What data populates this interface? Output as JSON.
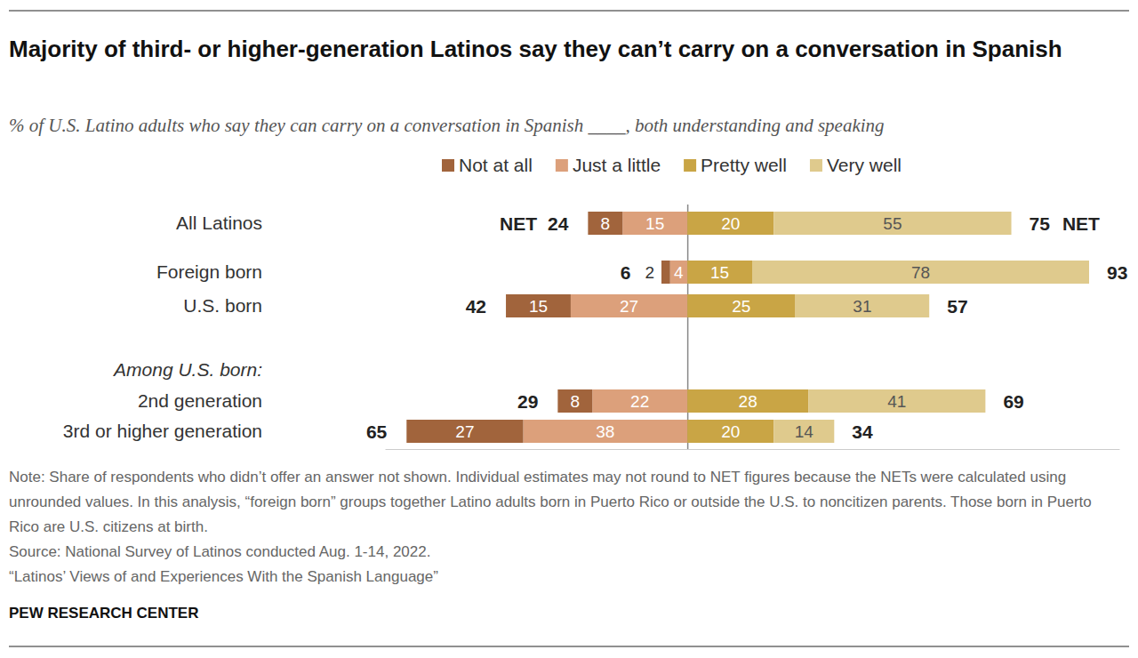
{
  "chart_data": {
    "type": "bar",
    "orientation": "horizontal",
    "stacked": true,
    "data_labels": true,
    "tick_labels": "y",
    "grid": true,
    "legend": "top",
    "title": "Majority of third- or higher-generation Latinos say they can’t carry on a conversation in Spanish",
    "subtitle": "% of U.S. Latino adults who say they can carry on a conversation in Spanish ____, both understanding and speaking",
    "categories": [
      "All Latinos",
      "Foreign born",
      "U.S. born",
      "Among U.S. born:",
      "2nd generation",
      "3rd or higher generation"
    ],
    "series": [
      {
        "name": "Not at all",
        "color": "#a1643c",
        "values": [
          8,
          2,
          15,
          null,
          8,
          27
        ]
      },
      {
        "name": "Just a little",
        "color": "#dca07b",
        "values": [
          15,
          4,
          27,
          null,
          22,
          38
        ]
      },
      {
        "name": "Pretty well",
        "color": "#c9a545",
        "values": [
          20,
          15,
          25,
          null,
          28,
          20
        ]
      },
      {
        "name": "Very well",
        "color": "#dfca8d",
        "values": [
          55,
          78,
          31,
          null,
          41,
          14
        ]
      }
    ],
    "nets": {
      "label": "NET",
      "left": [
        24,
        6,
        42,
        null,
        29,
        65
      ],
      "right": [
        75,
        93,
        57,
        null,
        69,
        34
      ]
    },
    "xlim": [
      -70,
      100
    ],
    "xticks": [
      0
    ],
    "note": "Note: Share of respondents who didn’t offer an answer not shown. Individual estimates may not round to NET figures because the NETs were calculated using unrounded values. In this analysis, “foreign born” groups together Latino adults born in Puerto Rico or outside the U.S. to noncitizen parents. Those born in Puerto Rico are U.S. citizens at birth.",
    "source": "Source: National Survey of Latinos conducted Aug. 1-14, 2022.",
    "report": "“Latinos’ Views of and Experiences With the Spanish Language”",
    "credit": "PEW RESEARCH CENTER"
  }
}
